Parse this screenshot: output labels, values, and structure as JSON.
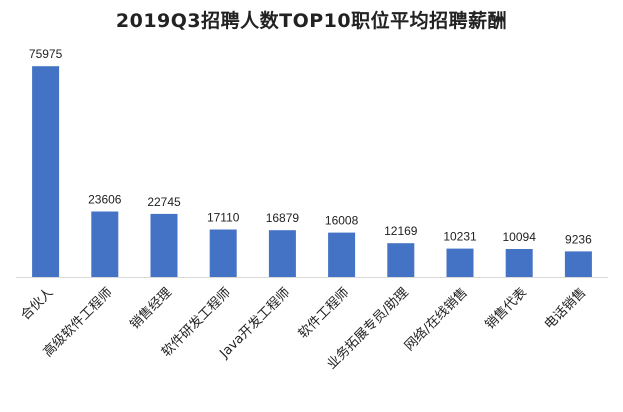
{
  "chart_data": {
    "type": "bar",
    "title": "2019Q3招聘人数TOP10职位平均招聘薪酬",
    "categories": [
      "合伙人",
      "高级软件工程师",
      "销售经理",
      "软件研发工程师",
      "Java开发工程师",
      "软件工程师",
      "业务拓展专员/助理",
      "网络/在线销售",
      "销售代表",
      "电话销售"
    ],
    "values": [
      75975,
      23606,
      22745,
      17110,
      16879,
      16008,
      12169,
      10231,
      10094,
      9236
    ],
    "ylim": [
      0,
      80000
    ],
    "grid": false,
    "legend": "none",
    "bar_color": "#4472c4",
    "axis_color": "#d9d9d9"
  }
}
